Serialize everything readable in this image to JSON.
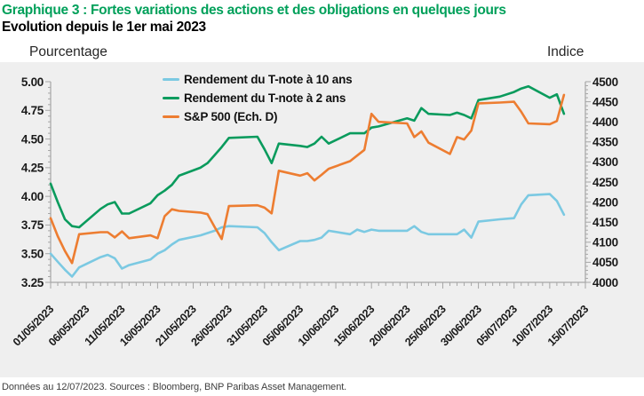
{
  "footer": {
    "source_note": "Données au 12/07/2023. Sources : Bloomberg, BNP Paribas Asset Management."
  },
  "chart_data": {
    "type": "line",
    "title": "Graphique 3 : Fortes variations des actions et des obligations en quelques jours",
    "subtitle": "Evolution depuis le 1er mai 2023",
    "left_axis": {
      "label": "Pourcentage",
      "min": 3.25,
      "max": 5.0,
      "step": 0.25,
      "minor_step": 0.05,
      "tick_labels": [
        "5.00",
        "4.75",
        "4.50",
        "4.25",
        "4.00",
        "3.75",
        "3.50",
        "3.25"
      ]
    },
    "right_axis": {
      "label": "Indice",
      "min": 4000,
      "max": 4500,
      "step": 50,
      "minor_step": 10,
      "tick_labels": [
        "4500",
        "4450",
        "4400",
        "4350",
        "4300",
        "4250",
        "4200",
        "4150",
        "4100",
        "4050",
        "4000"
      ]
    },
    "x_axis": {
      "start_date": "01/05/2023",
      "end_date": "15/07/2023",
      "major_step_days": 5,
      "minor_step_days": 1,
      "span_days": 75,
      "tick_labels": [
        "01/05/2023",
        "06/05/2023",
        "11/05/2023",
        "16/05/2023",
        "21/05/2023",
        "26/05/2023",
        "31/05/2023",
        "05/06/2023",
        "10/06/2023",
        "15/06/2023",
        "20/06/2023",
        "25/06/2023",
        "30/06/2023",
        "05/07/2023",
        "10/07/2023",
        "15/07/2023"
      ]
    },
    "x_dates": [
      "01/05",
      "02/05",
      "03/05",
      "04/05",
      "05/05",
      "08/05",
      "09/05",
      "10/05",
      "11/05",
      "12/05",
      "15/05",
      "16/05",
      "17/05",
      "18/05",
      "19/05",
      "22/05",
      "23/05",
      "24/05",
      "25/05",
      "26/05",
      "30/05",
      "31/05",
      "01/06",
      "02/06",
      "05/06",
      "06/06",
      "07/06",
      "08/06",
      "09/06",
      "12/06",
      "13/06",
      "14/06",
      "15/06",
      "16/06",
      "20/06",
      "21/06",
      "22/06",
      "23/06",
      "26/06",
      "27/06",
      "28/06",
      "29/06",
      "30/06",
      "03/07",
      "05/07",
      "06/07",
      "07/07",
      "10/07",
      "11/07",
      "12/07"
    ],
    "x_day_offsets": [
      0,
      1,
      2,
      3,
      4,
      7,
      8,
      9,
      10,
      11,
      14,
      15,
      16,
      17,
      18,
      21,
      22,
      23,
      24,
      25,
      29,
      30,
      31,
      32,
      35,
      36,
      37,
      38,
      39,
      42,
      43,
      44,
      45,
      46,
      50,
      51,
      52,
      53,
      56,
      57,
      58,
      59,
      60,
      63,
      65,
      66,
      67,
      70,
      71,
      72
    ],
    "series": [
      {
        "name": "Rendement du T-note à 10 ans",
        "axis": "left",
        "color": "#7BC9E2",
        "values": [
          3.5,
          3.43,
          3.36,
          3.3,
          3.38,
          3.47,
          3.49,
          3.46,
          3.37,
          3.4,
          3.45,
          3.5,
          3.53,
          3.58,
          3.62,
          3.66,
          3.68,
          3.7,
          3.73,
          3.74,
          3.73,
          3.68,
          3.6,
          3.53,
          3.61,
          3.61,
          3.62,
          3.64,
          3.7,
          3.67,
          3.71,
          3.69,
          3.71,
          3.7,
          3.7,
          3.74,
          3.69,
          3.67,
          3.67,
          3.67,
          3.71,
          3.64,
          3.78,
          3.8,
          3.81,
          3.93,
          4.01,
          4.02,
          3.96,
          3.84
        ]
      },
      {
        "name": "Rendement du T-note à 2 ans",
        "axis": "left",
        "color": "#0A9B5D",
        "values": [
          4.11,
          3.95,
          3.8,
          3.74,
          3.73,
          3.89,
          3.93,
          3.95,
          3.85,
          3.85,
          3.94,
          4.01,
          4.05,
          4.1,
          4.18,
          4.25,
          4.29,
          4.36,
          4.43,
          4.51,
          4.52,
          4.41,
          4.29,
          4.46,
          4.44,
          4.43,
          4.46,
          4.52,
          4.46,
          4.55,
          4.55,
          4.55,
          4.6,
          4.61,
          4.68,
          4.66,
          4.77,
          4.72,
          4.71,
          4.73,
          4.71,
          4.68,
          4.84,
          4.87,
          4.91,
          4.94,
          4.96,
          4.86,
          4.89,
          4.72
        ]
      },
      {
        "name": "S&P 500 (Ech. D)",
        "axis": "right",
        "color": "#ED7D31",
        "values": [
          4160,
          4115,
          4078,
          4048,
          4120,
          4125,
          4125,
          4112,
          4127,
          4110,
          4117,
          4110,
          4165,
          4182,
          4178,
          4174,
          4170,
          4138,
          4108,
          4190,
          4192,
          4186,
          4172,
          4278,
          4266,
          4272,
          4254,
          4268,
          4283,
          4302,
          4316,
          4330,
          4420,
          4400,
          4396,
          4362,
          4376,
          4348,
          4320,
          4362,
          4356,
          4378,
          4446,
          4448,
          4450,
          4425,
          4396,
          4394,
          4402,
          4467
        ]
      }
    ]
  }
}
